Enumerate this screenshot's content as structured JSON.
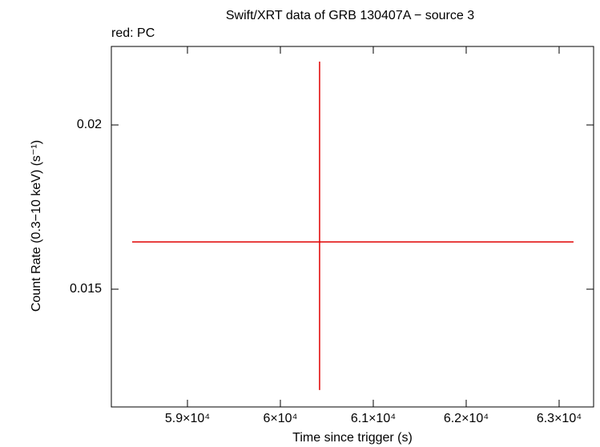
{
  "chart_data": {
    "type": "errorbar",
    "title": "Swift/XRT data of GRB 130407A − source 3",
    "subtitle": "red: PC",
    "xlabel": "Time since trigger (s)",
    "ylabel": "Count Rate (0.3−10 keV) (s⁻¹)",
    "series": [
      {
        "name": "PC",
        "color": "#e00000",
        "x": [
          60422
        ],
        "xerr_minus": [
          2017
        ],
        "xerr_plus": [
          2733
        ],
        "values": [
          0.01644
        ],
        "yerr_minus": [
          0.00451
        ],
        "yerr_plus": [
          0.00549
        ]
      }
    ],
    "xlim": [
      58181,
      63371
    ],
    "xticks": [
      {
        "value": 59000,
        "label": "5.9×10⁴"
      },
      {
        "value": 60000,
        "label": "6×10⁴"
      },
      {
        "value": 61000,
        "label": "6.1×10⁴"
      },
      {
        "value": 62000,
        "label": "6.2×10⁴"
      },
      {
        "value": 63000,
        "label": "6.3×10⁴"
      }
    ],
    "ylim": [
      0.011415,
      0.02239
    ],
    "yticks": [
      0.015,
      0.02
    ]
  }
}
